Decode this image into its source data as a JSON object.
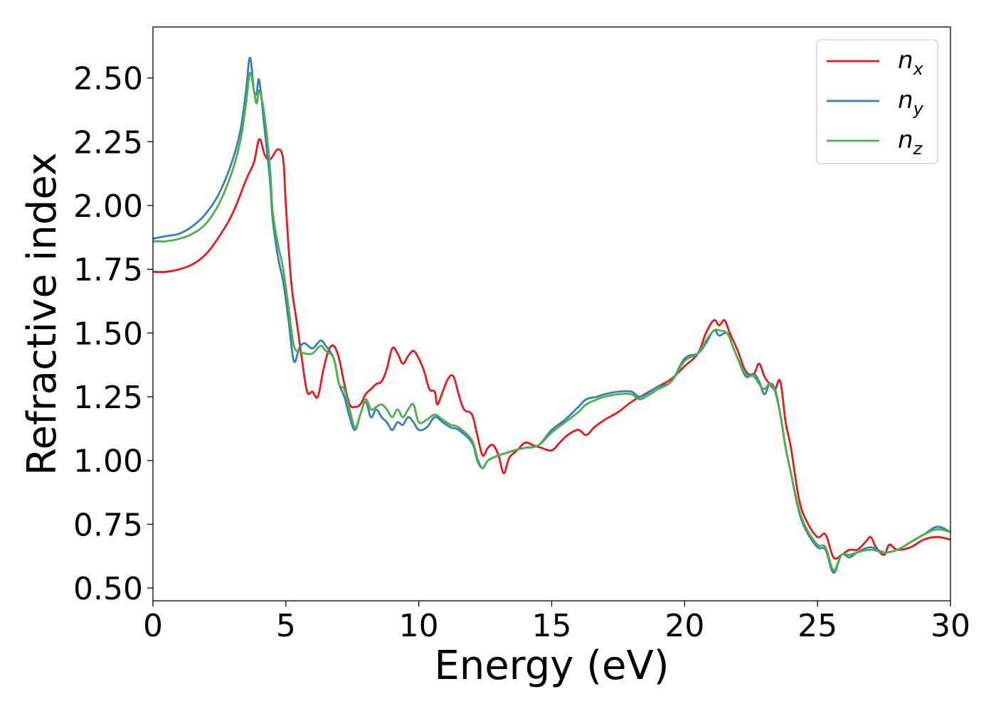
{
  "chart_data": {
    "type": "line",
    "title": "",
    "xlabel": "Energy (eV)",
    "ylabel": "Refractive index",
    "xlim": [
      0,
      30
    ],
    "ylim": [
      0.45,
      2.7
    ],
    "xticks": [
      0,
      5,
      10,
      15,
      20,
      25,
      30
    ],
    "xtick_labels": [
      "0",
      "5",
      "10",
      "15",
      "20",
      "25",
      "30"
    ],
    "yticks": [
      0.5,
      0.75,
      1.0,
      1.25,
      1.5,
      1.75,
      2.0,
      2.25,
      2.5
    ],
    "ytick_labels": [
      "0.50",
      "0.75",
      "1.00",
      "1.25",
      "1.50",
      "1.75",
      "2.00",
      "2.25",
      "2.50"
    ],
    "grid": false,
    "legend_position": "top-right",
    "series": [
      {
        "name": "n_x",
        "label_base": "n",
        "label_sub": "x",
        "color": "#e41a1c",
        "points": [
          [
            0,
            1.74
          ],
          [
            0.5,
            1.74
          ],
          [
            1,
            1.75
          ],
          [
            1.5,
            1.77
          ],
          [
            2,
            1.81
          ],
          [
            2.5,
            1.88
          ],
          [
            3,
            1.97
          ],
          [
            3.5,
            2.1
          ],
          [
            3.8,
            2.17
          ],
          [
            4.0,
            2.26
          ],
          [
            4.2,
            2.2
          ],
          [
            4.4,
            2.18
          ],
          [
            4.7,
            2.22
          ],
          [
            4.9,
            2.18
          ],
          [
            5.0,
            2.0
          ],
          [
            5.2,
            1.7
          ],
          [
            5.4,
            1.55
          ],
          [
            5.6,
            1.4
          ],
          [
            5.8,
            1.27
          ],
          [
            6.0,
            1.27
          ],
          [
            6.2,
            1.25
          ],
          [
            6.4,
            1.35
          ],
          [
            6.6,
            1.43
          ],
          [
            6.8,
            1.45
          ],
          [
            7.0,
            1.4
          ],
          [
            7.2,
            1.3
          ],
          [
            7.4,
            1.22
          ],
          [
            7.6,
            1.21
          ],
          [
            7.8,
            1.22
          ],
          [
            8.0,
            1.26
          ],
          [
            8.2,
            1.28
          ],
          [
            8.4,
            1.3
          ],
          [
            8.6,
            1.31
          ],
          [
            8.8,
            1.36
          ],
          [
            9.0,
            1.44
          ],
          [
            9.2,
            1.42
          ],
          [
            9.4,
            1.38
          ],
          [
            9.6,
            1.41
          ],
          [
            9.8,
            1.43
          ],
          [
            10.0,
            1.4
          ],
          [
            10.2,
            1.35
          ],
          [
            10.4,
            1.28
          ],
          [
            10.6,
            1.27
          ],
          [
            10.7,
            1.22
          ],
          [
            10.9,
            1.27
          ],
          [
            11.1,
            1.32
          ],
          [
            11.3,
            1.33
          ],
          [
            11.5,
            1.26
          ],
          [
            11.7,
            1.2
          ],
          [
            12.0,
            1.18
          ],
          [
            12.2,
            1.1
          ],
          [
            12.4,
            1.02
          ],
          [
            12.6,
            1.05
          ],
          [
            12.8,
            1.06
          ],
          [
            13.0,
            1.02
          ],
          [
            13.2,
            0.95
          ],
          [
            13.4,
            1.01
          ],
          [
            13.7,
            1.04
          ],
          [
            14.0,
            1.07
          ],
          [
            14.3,
            1.06
          ],
          [
            14.6,
            1.05
          ],
          [
            15.0,
            1.04
          ],
          [
            15.3,
            1.07
          ],
          [
            15.6,
            1.1
          ],
          [
            16.0,
            1.12
          ],
          [
            16.3,
            1.1
          ],
          [
            16.6,
            1.13
          ],
          [
            17.0,
            1.16
          ],
          [
            17.5,
            1.19
          ],
          [
            18.0,
            1.23
          ],
          [
            18.5,
            1.26
          ],
          [
            19.0,
            1.29
          ],
          [
            19.5,
            1.32
          ],
          [
            20.0,
            1.37
          ],
          [
            20.5,
            1.42
          ],
          [
            20.8,
            1.5
          ],
          [
            21.1,
            1.55
          ],
          [
            21.3,
            1.53
          ],
          [
            21.5,
            1.55
          ],
          [
            21.7,
            1.5
          ],
          [
            22.0,
            1.43
          ],
          [
            22.3,
            1.35
          ],
          [
            22.6,
            1.34
          ],
          [
            22.8,
            1.38
          ],
          [
            23.0,
            1.33
          ],
          [
            23.2,
            1.3
          ],
          [
            23.4,
            1.28
          ],
          [
            23.6,
            1.31
          ],
          [
            23.8,
            1.15
          ],
          [
            24.0,
            1.05
          ],
          [
            24.3,
            0.85
          ],
          [
            24.6,
            0.76
          ],
          [
            25.0,
            0.7
          ],
          [
            25.3,
            0.71
          ],
          [
            25.6,
            0.62
          ],
          [
            25.9,
            0.63
          ],
          [
            26.2,
            0.65
          ],
          [
            26.5,
            0.65
          ],
          [
            26.8,
            0.68
          ],
          [
            27.0,
            0.7
          ],
          [
            27.2,
            0.66
          ],
          [
            27.5,
            0.63
          ],
          [
            27.7,
            0.67
          ],
          [
            28.0,
            0.65
          ],
          [
            28.5,
            0.66
          ],
          [
            29.0,
            0.69
          ],
          [
            29.5,
            0.7
          ],
          [
            30.0,
            0.69
          ]
        ]
      },
      {
        "name": "n_y",
        "label_base": "n",
        "label_sub": "y",
        "color": "#377eb8",
        "points": [
          [
            0,
            1.87
          ],
          [
            0.5,
            1.88
          ],
          [
            1,
            1.89
          ],
          [
            1.5,
            1.92
          ],
          [
            2,
            1.97
          ],
          [
            2.5,
            2.05
          ],
          [
            3,
            2.18
          ],
          [
            3.3,
            2.3
          ],
          [
            3.5,
            2.45
          ],
          [
            3.65,
            2.58
          ],
          [
            3.8,
            2.45
          ],
          [
            3.9,
            2.44
          ],
          [
            4.0,
            2.49
          ],
          [
            4.2,
            2.3
          ],
          [
            4.4,
            2.1
          ],
          [
            4.5,
            1.95
          ],
          [
            4.7,
            1.8
          ],
          [
            4.9,
            1.7
          ],
          [
            5.1,
            1.55
          ],
          [
            5.3,
            1.39
          ],
          [
            5.5,
            1.44
          ],
          [
            5.7,
            1.46
          ],
          [
            6.0,
            1.44
          ],
          [
            6.3,
            1.47
          ],
          [
            6.5,
            1.45
          ],
          [
            6.8,
            1.4
          ],
          [
            7.0,
            1.3
          ],
          [
            7.2,
            1.25
          ],
          [
            7.4,
            1.17
          ],
          [
            7.6,
            1.12
          ],
          [
            7.8,
            1.18
          ],
          [
            8.0,
            1.23
          ],
          [
            8.2,
            1.17
          ],
          [
            8.4,
            1.2
          ],
          [
            8.6,
            1.17
          ],
          [
            8.8,
            1.15
          ],
          [
            9.0,
            1.12
          ],
          [
            9.2,
            1.15
          ],
          [
            9.4,
            1.14
          ],
          [
            9.6,
            1.17
          ],
          [
            9.8,
            1.15
          ],
          [
            10.0,
            1.12
          ],
          [
            10.3,
            1.13
          ],
          [
            10.6,
            1.17
          ],
          [
            10.9,
            1.15
          ],
          [
            11.2,
            1.13
          ],
          [
            11.5,
            1.12
          ],
          [
            12.0,
            1.07
          ],
          [
            12.2,
            1.0
          ],
          [
            12.4,
            0.97
          ],
          [
            12.6,
            1.0
          ],
          [
            13.0,
            1.02
          ],
          [
            13.3,
            1.03
          ],
          [
            13.6,
            1.04
          ],
          [
            14.0,
            1.05
          ],
          [
            14.5,
            1.06
          ],
          [
            15.0,
            1.12
          ],
          [
            15.5,
            1.16
          ],
          [
            16.0,
            1.21
          ],
          [
            16.3,
            1.24
          ],
          [
            16.7,
            1.25
          ],
          [
            17.0,
            1.26
          ],
          [
            17.5,
            1.27
          ],
          [
            18.0,
            1.27
          ],
          [
            18.3,
            1.25
          ],
          [
            18.7,
            1.27
          ],
          [
            19.0,
            1.29
          ],
          [
            19.5,
            1.31
          ],
          [
            20.0,
            1.4
          ],
          [
            20.5,
            1.42
          ],
          [
            20.8,
            1.46
          ],
          [
            21.1,
            1.51
          ],
          [
            21.3,
            1.49
          ],
          [
            21.6,
            1.5
          ],
          [
            21.8,
            1.45
          ],
          [
            22.0,
            1.4
          ],
          [
            22.3,
            1.33
          ],
          [
            22.6,
            1.34
          ],
          [
            22.8,
            1.31
          ],
          [
            23.0,
            1.26
          ],
          [
            23.2,
            1.3
          ],
          [
            23.4,
            1.28
          ],
          [
            23.6,
            1.18
          ],
          [
            23.8,
            1.05
          ],
          [
            24.0,
            0.95
          ],
          [
            24.3,
            0.8
          ],
          [
            24.6,
            0.72
          ],
          [
            25.0,
            0.66
          ],
          [
            25.3,
            0.65
          ],
          [
            25.6,
            0.56
          ],
          [
            25.9,
            0.63
          ],
          [
            26.2,
            0.62
          ],
          [
            26.5,
            0.64
          ],
          [
            27.0,
            0.66
          ],
          [
            27.5,
            0.64
          ],
          [
            28.0,
            0.65
          ],
          [
            28.5,
            0.68
          ],
          [
            29.0,
            0.71
          ],
          [
            29.5,
            0.74
          ],
          [
            30.0,
            0.72
          ]
        ]
      },
      {
        "name": "n_z",
        "label_base": "n",
        "label_sub": "z",
        "color": "#4daf4a",
        "points": [
          [
            0,
            1.86
          ],
          [
            0.5,
            1.86
          ],
          [
            1,
            1.87
          ],
          [
            1.5,
            1.89
          ],
          [
            2,
            1.93
          ],
          [
            2.5,
            2.01
          ],
          [
            3,
            2.14
          ],
          [
            3.3,
            2.26
          ],
          [
            3.5,
            2.4
          ],
          [
            3.65,
            2.52
          ],
          [
            3.8,
            2.45
          ],
          [
            3.9,
            2.4
          ],
          [
            4.0,
            2.45
          ],
          [
            4.2,
            2.35
          ],
          [
            4.4,
            2.15
          ],
          [
            4.5,
            1.98
          ],
          [
            4.7,
            1.85
          ],
          [
            4.9,
            1.75
          ],
          [
            5.1,
            1.6
          ],
          [
            5.3,
            1.45
          ],
          [
            5.5,
            1.43
          ],
          [
            5.7,
            1.42
          ],
          [
            6.0,
            1.42
          ],
          [
            6.3,
            1.45
          ],
          [
            6.5,
            1.43
          ],
          [
            6.8,
            1.4
          ],
          [
            7.0,
            1.3
          ],
          [
            7.2,
            1.28
          ],
          [
            7.4,
            1.2
          ],
          [
            7.6,
            1.13
          ],
          [
            7.8,
            1.18
          ],
          [
            8.0,
            1.24
          ],
          [
            8.2,
            1.2
          ],
          [
            8.4,
            1.21
          ],
          [
            8.6,
            1.22
          ],
          [
            8.8,
            1.2
          ],
          [
            9.0,
            1.17
          ],
          [
            9.2,
            1.2
          ],
          [
            9.4,
            1.17
          ],
          [
            9.6,
            1.2
          ],
          [
            9.8,
            1.22
          ],
          [
            10.0,
            1.15
          ],
          [
            10.3,
            1.16
          ],
          [
            10.6,
            1.18
          ],
          [
            10.9,
            1.16
          ],
          [
            11.2,
            1.14
          ],
          [
            11.5,
            1.13
          ],
          [
            12.0,
            1.08
          ],
          [
            12.2,
            1.01
          ],
          [
            12.4,
            0.97
          ],
          [
            12.6,
            1.0
          ],
          [
            13.0,
            1.02
          ],
          [
            13.3,
            1.03
          ],
          [
            13.6,
            1.04
          ],
          [
            14.0,
            1.05
          ],
          [
            14.5,
            1.06
          ],
          [
            15.0,
            1.11
          ],
          [
            15.5,
            1.15
          ],
          [
            16.0,
            1.19
          ],
          [
            16.3,
            1.22
          ],
          [
            16.7,
            1.24
          ],
          [
            17.0,
            1.25
          ],
          [
            17.5,
            1.26
          ],
          [
            18.0,
            1.26
          ],
          [
            18.3,
            1.24
          ],
          [
            18.7,
            1.26
          ],
          [
            19.0,
            1.28
          ],
          [
            19.5,
            1.31
          ],
          [
            20.0,
            1.39
          ],
          [
            20.5,
            1.42
          ],
          [
            20.8,
            1.47
          ],
          [
            21.1,
            1.51
          ],
          [
            21.3,
            1.51
          ],
          [
            21.6,
            1.5
          ],
          [
            21.8,
            1.45
          ],
          [
            22.0,
            1.4
          ],
          [
            22.3,
            1.34
          ],
          [
            22.6,
            1.33
          ],
          [
            22.8,
            1.3
          ],
          [
            23.0,
            1.28
          ],
          [
            23.2,
            1.3
          ],
          [
            23.4,
            1.27
          ],
          [
            23.6,
            1.18
          ],
          [
            23.8,
            1.05
          ],
          [
            24.0,
            0.95
          ],
          [
            24.3,
            0.81
          ],
          [
            24.6,
            0.73
          ],
          [
            25.0,
            0.67
          ],
          [
            25.3,
            0.66
          ],
          [
            25.6,
            0.57
          ],
          [
            25.9,
            0.63
          ],
          [
            26.2,
            0.63
          ],
          [
            26.5,
            0.64
          ],
          [
            27.0,
            0.65
          ],
          [
            27.5,
            0.64
          ],
          [
            28.0,
            0.65
          ],
          [
            28.5,
            0.68
          ],
          [
            29.0,
            0.71
          ],
          [
            29.5,
            0.73
          ],
          [
            30.0,
            0.72
          ]
        ]
      }
    ]
  }
}
